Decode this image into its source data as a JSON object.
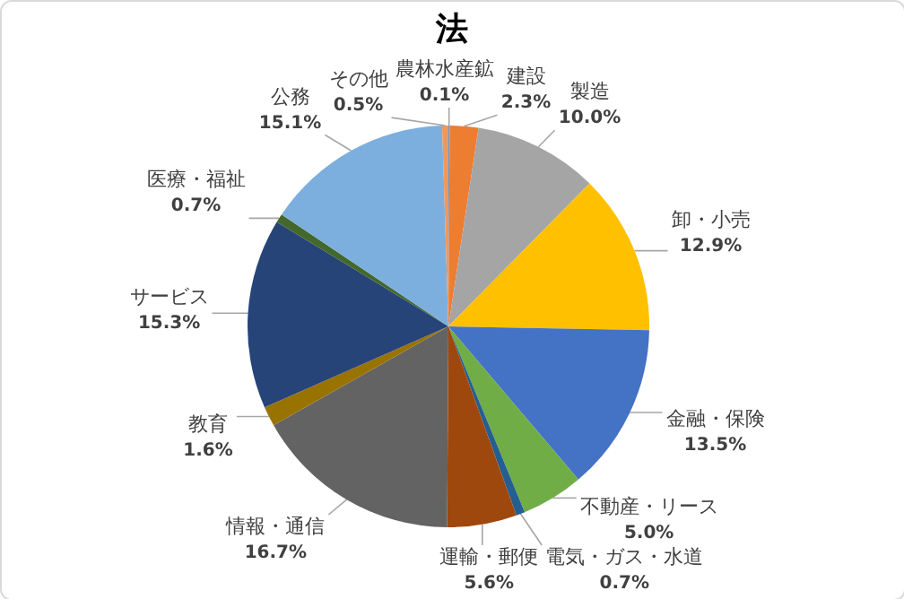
{
  "chart_data": {
    "type": "pie",
    "title": "法",
    "categories": [
      "農林水産鉱",
      "建設",
      "製造",
      "卸・小売",
      "金融・保険",
      "不動産・リース",
      "電気・ガス・水道",
      "運輸・郵便",
      "情報・通信",
      "教育",
      "サービス",
      "医療・福祉",
      "公務",
      "その他"
    ],
    "values": [
      0.1,
      2.3,
      10.0,
      12.9,
      13.5,
      5.0,
      0.7,
      5.6,
      16.7,
      1.6,
      15.3,
      0.7,
      15.1,
      0.5
    ],
    "value_labels": [
      "0.1%",
      "2.3%",
      "10.0%",
      "12.9%",
      "13.5%",
      "5.0%",
      "0.7%",
      "5.6%",
      "16.7%",
      "1.6%",
      "15.3%",
      "0.7%",
      "15.1%",
      "0.5%"
    ],
    "colors": [
      "#5b9bd5",
      "#ed7d31",
      "#a5a5a5",
      "#ffc000",
      "#4472c4",
      "#70ad47",
      "#255e91",
      "#9e480e",
      "#636363",
      "#997300",
      "#264478",
      "#43682b",
      "#7cafdd",
      "#f1975a"
    ]
  }
}
